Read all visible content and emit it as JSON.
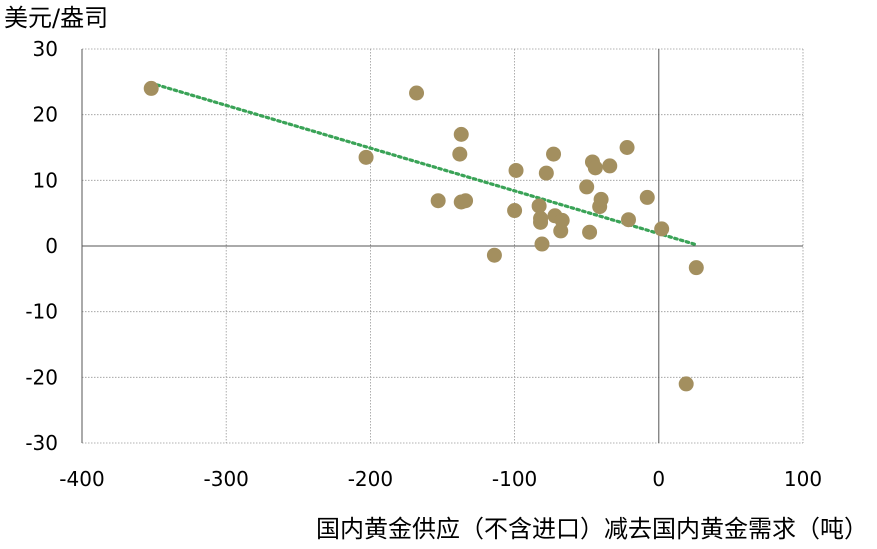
{
  "chart_data": {
    "type": "scatter",
    "title": "",
    "xlabel": "国内黄金供应（不含进口）减去国内黄金需求（吨）",
    "ylabel": "美元/盎司",
    "xlim": [
      -400,
      100
    ],
    "ylim": [
      -30,
      30
    ],
    "xticks": [
      -400,
      -300,
      -200,
      -100,
      0,
      100
    ],
    "yticks": [
      -30,
      -20,
      -10,
      0,
      10,
      20,
      30
    ],
    "grid": true,
    "colors": {
      "points": "#a38f5f",
      "trendline": "#3aa357",
      "grid": "#999999",
      "axis": "#555555"
    },
    "points": [
      [
        -352,
        24
      ],
      [
        -168,
        23.3
      ],
      [
        -203,
        13.5
      ],
      [
        -137,
        17
      ],
      [
        -138,
        14
      ],
      [
        -153,
        6.9
      ],
      [
        -137,
        6.7
      ],
      [
        -134,
        6.9
      ],
      [
        -114,
        -1.4
      ],
      [
        -99,
        11.5
      ],
      [
        -100,
        5.4
      ],
      [
        -83,
        6.1
      ],
      [
        -82,
        4.2
      ],
      [
        -82,
        3.6
      ],
      [
        -81,
        0.3
      ],
      [
        -78,
        11.1
      ],
      [
        -73,
        14
      ],
      [
        -72,
        4.6
      ],
      [
        -67,
        3.9
      ],
      [
        -68,
        2.3
      ],
      [
        -50,
        9
      ],
      [
        -48,
        2.1
      ],
      [
        -46,
        12.8
      ],
      [
        -44,
        11.9
      ],
      [
        -41,
        6
      ],
      [
        -40,
        7.1
      ],
      [
        -34,
        12.2
      ],
      [
        -22,
        15
      ],
      [
        -21,
        4
      ],
      [
        -8,
        7.4
      ],
      [
        2,
        2.6
      ],
      [
        19,
        -21
      ],
      [
        26,
        -3.3
      ]
    ],
    "trendline": {
      "x": [
        -352,
        26
      ],
      "y": [
        24.8,
        0.2
      ]
    }
  }
}
